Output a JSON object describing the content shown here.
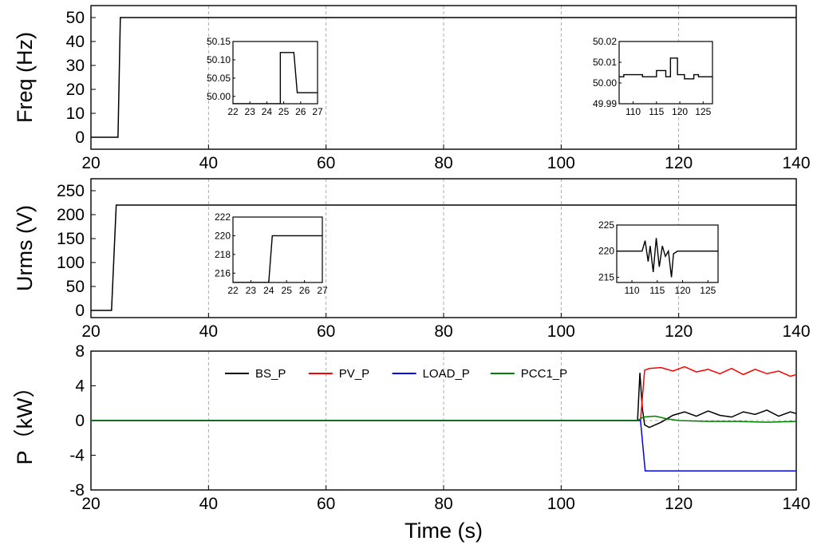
{
  "chart_data": [
    {
      "type": "line",
      "name": "freq",
      "ylabel": "Freq (Hz)",
      "xlim": [
        20,
        140
      ],
      "ylim": [
        -5,
        55
      ],
      "yticks": [
        0,
        10,
        20,
        30,
        40,
        50
      ],
      "xticks": [
        20,
        40,
        60,
        80,
        100,
        120,
        140
      ],
      "grid": true,
      "series": [
        {
          "name": "Freq",
          "color": "#000000",
          "x": [
            20,
            24.6,
            25.0,
            140
          ],
          "y": [
            0,
            0,
            50,
            50
          ]
        }
      ],
      "insets": [
        {
          "name": "freq-inset-start",
          "xlim": [
            22,
            27
          ],
          "ylim": [
            49.98,
            50.15
          ],
          "xticks": [
            22,
            23,
            24,
            25,
            26,
            27
          ],
          "yticks": [
            50.0,
            50.05,
            50.1,
            50.15
          ],
          "ytick_labels": [
            "50.00",
            "50.05",
            "50.10",
            "50.15"
          ],
          "series": [
            {
              "color": "#000000",
              "x": [
                22,
                24.8,
                24.8,
                25.6,
                25.8,
                27
              ],
              "y": [
                49.98,
                49.98,
                50.12,
                50.12,
                50.01,
                50.01
              ]
            }
          ]
        },
        {
          "name": "freq-inset-end",
          "xlim": [
            107,
            127
          ],
          "ylim": [
            49.99,
            50.02
          ],
          "xticks": [
            110,
            115,
            120,
            125
          ],
          "yticks": [
            49.99,
            50.0,
            50.01,
            50.02
          ],
          "ytick_labels": [
            "49.99",
            "50.00",
            "50.01",
            "50.02"
          ],
          "series": [
            {
              "color": "#000000",
              "x": [
                107,
                108,
                108,
                112,
                112,
                115,
                115,
                117,
                117,
                118,
                118,
                119.5,
                119.5,
                121,
                121,
                123,
                123,
                124,
                124,
                127
              ],
              "y": [
                50.003,
                50.003,
                50.004,
                50.004,
                50.003,
                50.003,
                50.006,
                50.006,
                50.003,
                50.003,
                50.012,
                50.012,
                50.004,
                50.004,
                50.002,
                50.002,
                50.004,
                50.004,
                50.003,
                50.003
              ]
            }
          ]
        }
      ]
    },
    {
      "type": "line",
      "name": "urms",
      "ylabel": "Urms (V)",
      "xlim": [
        20,
        140
      ],
      "ylim": [
        -15,
        275
      ],
      "yticks": [
        0,
        50,
        100,
        150,
        200,
        250
      ],
      "xticks": [
        20,
        40,
        60,
        80,
        100,
        120,
        140
      ],
      "grid": true,
      "series": [
        {
          "name": "Urms",
          "color": "#000000",
          "x": [
            20,
            23.5,
            24.3,
            140
          ],
          "y": [
            0,
            0,
            220,
            220
          ]
        }
      ],
      "insets": [
        {
          "name": "urms-inset-start",
          "xlim": [
            22,
            27
          ],
          "ylim": [
            215,
            222
          ],
          "xticks": [
            22,
            23,
            24,
            25,
            26,
            27
          ],
          "yticks": [
            216,
            218,
            220,
            222
          ],
          "series": [
            {
              "color": "#000000",
              "x": [
                22,
                24.0,
                24.2,
                27
              ],
              "y": [
                215,
                215,
                220,
                220
              ]
            }
          ]
        },
        {
          "name": "urms-inset-end",
          "xlim": [
            107,
            127
          ],
          "ylim": [
            214,
            225
          ],
          "xticks": [
            110,
            115,
            120,
            125
          ],
          "yticks": [
            215,
            220,
            225
          ],
          "series": [
            {
              "color": "#000000",
              "x": [
                107,
                112,
                112.6,
                113.2,
                113.6,
                114.2,
                114.8,
                115.4,
                116.0,
                116.6,
                117.2,
                117.8,
                118.2,
                119,
                127
              ],
              "y": [
                220,
                220,
                222,
                218,
                221,
                216,
                222.5,
                217,
                221,
                219,
                220,
                215,
                219.5,
                220,
                220
              ]
            }
          ]
        }
      ]
    },
    {
      "type": "line",
      "name": "power",
      "ylabel": "P（kW）",
      "xlabel": "Time (s)",
      "xlim": [
        20,
        140
      ],
      "ylim": [
        -8,
        8
      ],
      "yticks": [
        -8,
        -4,
        0,
        4,
        8
      ],
      "xticks": [
        20,
        40,
        60,
        80,
        100,
        120,
        140
      ],
      "grid": true,
      "legend": "top",
      "series": [
        {
          "name": "BS_P",
          "color": "#000000",
          "x": [
            20,
            113,
            113.4,
            113.8,
            114.2,
            115,
            117,
            119,
            121,
            123,
            125,
            127,
            129,
            131,
            133,
            135,
            137,
            139,
            140
          ],
          "y": [
            0,
            0,
            5.5,
            1.5,
            -0.5,
            -0.8,
            -0.2,
            0.6,
            1.0,
            0.5,
            1.1,
            0.6,
            0.4,
            1.0,
            0.7,
            1.2,
            0.5,
            1.0,
            0.8
          ]
        },
        {
          "name": "PV_P",
          "color": "#ff0000",
          "x": [
            20,
            113.5,
            114.2,
            115,
            117,
            119,
            121,
            123,
            125,
            127,
            129,
            131,
            133,
            135,
            137,
            139,
            140
          ],
          "y": [
            0,
            0,
            5.8,
            6.0,
            6.1,
            5.7,
            6.2,
            5.6,
            5.9,
            5.4,
            6.0,
            5.3,
            5.9,
            5.4,
            5.7,
            5.1,
            5.3
          ]
        },
        {
          "name": "LOAD_P",
          "color": "#0000ff",
          "x": [
            20,
            113.5,
            114.3,
            116,
            140
          ],
          "y": [
            0,
            0,
            -5.8,
            -5.8,
            -5.8
          ]
        },
        {
          "name": "PCC1_P",
          "color": "#008000",
          "x": [
            20,
            113,
            114,
            116,
            118,
            120,
            125,
            130,
            135,
            140
          ],
          "y": [
            0,
            0,
            0.4,
            0.5,
            0.2,
            0.0,
            -0.1,
            -0.1,
            -0.2,
            -0.1
          ]
        }
      ]
    }
  ]
}
